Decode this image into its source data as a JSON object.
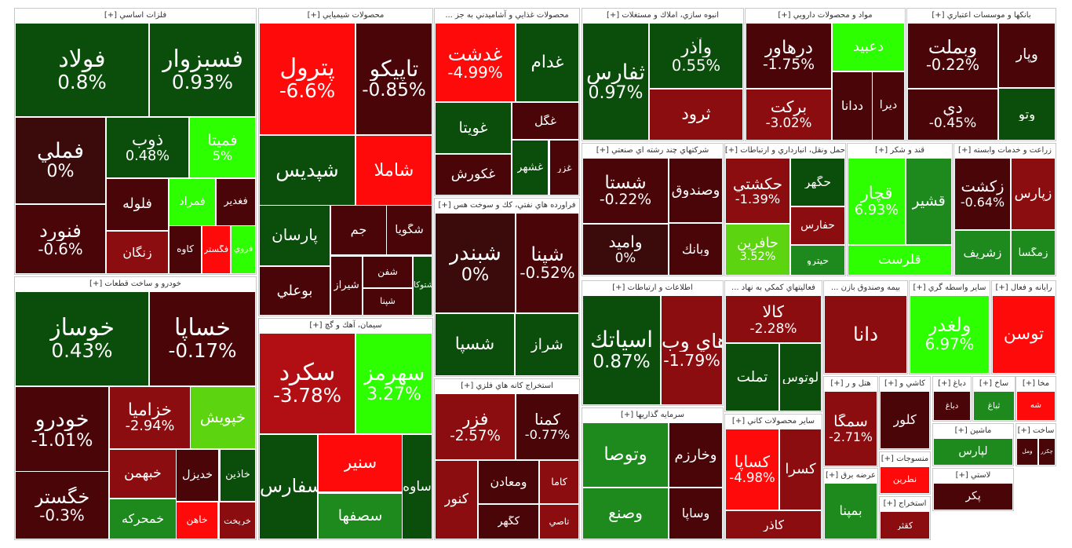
{
  "colors": {
    "dark_red": "#4a0508",
    "red": "#8c0d10",
    "bright_red": "#ff0a0a",
    "medium_red": "#b10f13",
    "neutral_dark": "#3b0a0a",
    "dark_green": "#0b4d0b",
    "green": "#1e8a1e",
    "bright_green": "#2eff00",
    "lime": "#5cd40f"
  },
  "chart_data": {
    "type": "heatmap",
    "sectors": [
      {
        "name": "فلزات اساسي [+]",
        "tiles": [
          {
            "symbol": "فولاد",
            "pct": "0.8%",
            "color": "#0b4d0b"
          },
          {
            "symbol": "فسبزوار",
            "pct": "0.93%",
            "color": "#0b4d0b"
          },
          {
            "symbol": "فملي",
            "pct": "0%",
            "color": "#3b0a0a"
          },
          {
            "symbol": "فنورد",
            "pct": "-0.6%",
            "color": "#4a0508"
          },
          {
            "symbol": "ذوب",
            "pct": "0.48%",
            "color": "#0b4d0b"
          },
          {
            "symbol": "فميتا",
            "pct": "5%",
            "color": "#2eff00"
          },
          {
            "symbol": "فلوله",
            "pct": "",
            "color": "#4a0508"
          },
          {
            "symbol": "زنگان",
            "pct": "",
            "color": "#8c0d10"
          },
          {
            "symbol": "فمراد",
            "pct": "",
            "color": "#2eff00"
          },
          {
            "symbol": "فغدير",
            "pct": "",
            "color": "#4a0508"
          },
          {
            "symbol": "كاوه",
            "pct": "",
            "color": "#4a0508"
          },
          {
            "symbol": "فگستر",
            "pct": "",
            "color": "#ff0a0a"
          },
          {
            "symbol": "فروي",
            "pct": "",
            "color": "#2eff00"
          }
        ]
      },
      {
        "name": "محصولات شيميايي [+]",
        "tiles": [
          {
            "symbol": "پترول",
            "pct": "-6.6%",
            "color": "#ff0a0a"
          },
          {
            "symbol": "تاپيكو",
            "pct": "-0.85%",
            "color": "#4a0508"
          },
          {
            "symbol": "شپديس",
            "pct": "",
            "color": "#0b4d0b"
          },
          {
            "symbol": "شاملا",
            "pct": "",
            "color": "#ff0a0a"
          },
          {
            "symbol": "پارسان",
            "pct": "",
            "color": "#0b4d0b"
          },
          {
            "symbol": "بوعلي",
            "pct": "",
            "color": "#4a0508"
          },
          {
            "symbol": "جم",
            "pct": "",
            "color": "#4a0508"
          },
          {
            "symbol": "شگويا",
            "pct": "",
            "color": "#4a0508"
          },
          {
            "symbol": "شيراز",
            "pct": "",
            "color": "#4a0508"
          },
          {
            "symbol": "شفن",
            "pct": "",
            "color": "#4a0508"
          },
          {
            "symbol": "شپنا",
            "pct": "",
            "color": "#4a0508"
          },
          {
            "symbol": "شتوكا",
            "pct": "",
            "color": "#0b4d0b"
          }
        ]
      },
      {
        "name": "محصولات غذايي و آشاميدني به جز ...",
        "tiles": [
          {
            "symbol": "غدشت",
            "pct": "-4.99%",
            "color": "#ff0a0a"
          },
          {
            "symbol": "غدام",
            "pct": "",
            "color": "#0b4d0b"
          },
          {
            "symbol": "غويتا",
            "pct": "",
            "color": "#0b4d0b"
          },
          {
            "symbol": "غكورش",
            "pct": "",
            "color": "#4a0508"
          },
          {
            "symbol": "غگل",
            "pct": "",
            "color": "#4a0508"
          },
          {
            "symbol": "غشهر",
            "pct": "",
            "color": "#0b4d0b"
          },
          {
            "symbol": "غزر",
            "pct": "",
            "color": "#4a0508"
          }
        ]
      },
      {
        "name": "انبوه سازي، املاك و مستغلات [+]",
        "tiles": [
          {
            "symbol": "ثفارس",
            "pct": "0.97%",
            "color": "#0b4d0b"
          },
          {
            "symbol": "وآذر",
            "pct": "0.55%",
            "color": "#0b4d0b"
          },
          {
            "symbol": "ثرود",
            "pct": "",
            "color": "#8c0d10"
          }
        ]
      },
      {
        "name": "مواد و محصولات دارويي [+]",
        "tiles": [
          {
            "symbol": "درهاور",
            "pct": "-1.75%",
            "color": "#4a0508"
          },
          {
            "symbol": "بركت",
            "pct": "-3.02%",
            "color": "#8c0d10"
          },
          {
            "symbol": "دعبيد",
            "pct": "",
            "color": "#2eff00"
          },
          {
            "symbol": "ددانا",
            "pct": "",
            "color": "#4a0508"
          },
          {
            "symbol": "ديرا",
            "pct": "",
            "color": "#4a0508"
          }
        ]
      },
      {
        "name": "بانكها و موسسات اعتباري [+]",
        "tiles": [
          {
            "symbol": "وبملت",
            "pct": "-0.22%",
            "color": "#4a0508"
          },
          {
            "symbol": "دي",
            "pct": "-0.45%",
            "color": "#4a0508"
          },
          {
            "symbol": "وپار",
            "pct": "",
            "color": "#4a0508"
          },
          {
            "symbol": "وتو",
            "pct": "",
            "color": "#0b4d0b"
          }
        ]
      },
      {
        "name": "خودرو و ساخت قطعات [+]",
        "tiles": [
          {
            "symbol": "خوساز",
            "pct": "0.43%",
            "color": "#0b4d0b"
          },
          {
            "symbol": "خساپا",
            "pct": "-0.17%",
            "color": "#4a0508"
          },
          {
            "symbol": "خودرو",
            "pct": "-1.01%",
            "color": "#4a0508"
          },
          {
            "symbol": "خگستر",
            "pct": "-0.3%",
            "color": "#4a0508"
          },
          {
            "symbol": "خزاميا",
            "pct": "-2.94%",
            "color": "#8c0d10"
          },
          {
            "symbol": "خپويش",
            "pct": "",
            "color": "#5cd40f"
          },
          {
            "symbol": "خبهمن",
            "pct": "",
            "color": "#8c0d10"
          },
          {
            "symbol": "خمحركه",
            "pct": "",
            "color": "#1e8a1e"
          },
          {
            "symbol": "خديزل",
            "pct": "",
            "color": "#4a0508"
          },
          {
            "symbol": "خاذين",
            "pct": "",
            "color": "#0b4d0b"
          },
          {
            "symbol": "خاهن",
            "pct": "",
            "color": "#ff0a0a"
          },
          {
            "symbol": "خريخت",
            "pct": "",
            "color": "#8c0d10"
          }
        ]
      },
      {
        "name": "سيمان، آهك و گچ [+]",
        "tiles": [
          {
            "symbol": "سكرد",
            "pct": "-3.78%",
            "color": "#b10f13"
          },
          {
            "symbol": "سهرمز",
            "pct": "3.27%",
            "color": "#2eff00"
          },
          {
            "symbol": "سفارس",
            "pct": "",
            "color": "#0b4d0b"
          },
          {
            "symbol": "سنير",
            "pct": "",
            "color": "#ff0a0a"
          },
          {
            "symbol": "سصفها",
            "pct": "",
            "color": "#1e8a1e"
          },
          {
            "symbol": "ساوه",
            "pct": "",
            "color": "#0b4d0b"
          }
        ]
      },
      {
        "name": "فراورده هاي نفتي، كك و سوخت هس [+]",
        "tiles": [
          {
            "symbol": "شبندر",
            "pct": "0%",
            "color": "#3b0a0a"
          },
          {
            "symbol": "شپنا",
            "pct": "-0.52%",
            "color": "#4a0508"
          },
          {
            "symbol": "شسپا",
            "pct": "",
            "color": "#0b4d0b"
          },
          {
            "symbol": "شراز",
            "pct": "",
            "color": "#0b4d0b"
          }
        ]
      },
      {
        "name": "شركتهاي چند رشته اي صنعتي [+]",
        "tiles": [
          {
            "symbol": "شستا",
            "pct": "-0.22%",
            "color": "#4a0508"
          },
          {
            "symbol": "وامید",
            "pct": "0%",
            "color": "#3b0a0a"
          },
          {
            "symbol": "وصندوق",
            "pct": "",
            "color": "#4a0508"
          },
          {
            "symbol": "وبانك",
            "pct": "",
            "color": "#4a0508"
          }
        ]
      },
      {
        "name": "حمل ونقل، انبارداري و ارتباطات [+]",
        "tiles": [
          {
            "symbol": "حكشتي",
            "pct": "-1.39%",
            "color": "#8c0d10"
          },
          {
            "symbol": "حافرين",
            "pct": "3.52%",
            "color": "#5cd40f"
          },
          {
            "symbol": "حگهر",
            "pct": "",
            "color": "#0b4d0b"
          },
          {
            "symbol": "حفارس",
            "pct": "",
            "color": "#8c0d10"
          },
          {
            "symbol": "حپترو",
            "pct": "",
            "color": "#1e8a1e"
          }
        ]
      },
      {
        "name": "قند و شكر [+]",
        "tiles": [
          {
            "symbol": "قچار",
            "pct": "6.93%",
            "color": "#2eff00"
          },
          {
            "symbol": "قشير",
            "pct": "",
            "color": "#1e8a1e"
          },
          {
            "symbol": "قلرست",
            "pct": "",
            "color": "#2eff00"
          }
        ]
      },
      {
        "name": "زراعت و خدمات وابسته [+]",
        "tiles": [
          {
            "symbol": "زكشت",
            "pct": "-0.64%",
            "color": "#4a0508"
          },
          {
            "symbol": "زپارس",
            "pct": "",
            "color": "#8c0d10"
          },
          {
            "symbol": "زشريف",
            "pct": "",
            "color": "#1e8a1e"
          },
          {
            "symbol": "زمگسا",
            "pct": "",
            "color": "#1e8a1e"
          }
        ]
      },
      {
        "name": "اطلاعات و ارتباطات [+]",
        "tiles": [
          {
            "symbol": "اسياتك",
            "pct": "0.87%",
            "color": "#0b4d0b"
          },
          {
            "symbol": "هاي وب",
            "pct": "-1.79%",
            "color": "#8c0d10"
          }
        ]
      },
      {
        "name": "فعاليتهاي كمكي به نهاد ...",
        "tiles": [
          {
            "symbol": "كالا",
            "pct": "-2.28%",
            "color": "#8c0d10"
          },
          {
            "symbol": "تملت",
            "pct": "",
            "color": "#0b4d0b"
          },
          {
            "symbol": "لوتوس",
            "pct": "",
            "color": "#0b4d0b"
          }
        ]
      },
      {
        "name": "سرمايه گذاريها [+]",
        "tiles": [
          {
            "symbol": "وتوصا",
            "pct": "",
            "color": "#1e8a1e"
          },
          {
            "symbol": "وصنع",
            "pct": "",
            "color": "#1e8a1e"
          },
          {
            "symbol": "وخارزم",
            "pct": "",
            "color": "#4a0508"
          },
          {
            "symbol": "وساپا",
            "pct": "",
            "color": "#4a0508"
          }
        ]
      },
      {
        "name": "ساير محصولات كاني [+]",
        "tiles": [
          {
            "symbol": "كساپا",
            "pct": "-4.98%",
            "color": "#ff0a0a"
          },
          {
            "symbol": "كسرا",
            "pct": "",
            "color": "#8c0d10"
          },
          {
            "symbol": "كاذر",
            "pct": "",
            "color": "#8c0d10"
          }
        ]
      },
      {
        "name": "بيمه وصندوق بازن ...",
        "tiles": [
          {
            "symbol": "دانا",
            "pct": "",
            "color": "#8c0d10"
          }
        ]
      },
      {
        "name": "ساير واسطه گري [+]",
        "tiles": [
          {
            "symbol": "ولغدر",
            "pct": "6.97%",
            "color": "#2eff00"
          }
        ]
      },
      {
        "name": "رايانه و فعال [+]",
        "tiles": [
          {
            "symbol": "توسن",
            "pct": "",
            "color": "#ff0a0a"
          }
        ]
      },
      {
        "name": "هتل و ر [+]",
        "tiles": [
          {
            "symbol": "سمگا",
            "pct": "-2.71%",
            "color": "#8c0d10"
          }
        ]
      },
      {
        "name": "ساخ [+]",
        "tiles": [
          {
            "symbol": "ثباغ",
            "pct": "",
            "color": "#1e8a1e"
          }
        ]
      },
      {
        "name": "ماشين [+]",
        "tiles": [
          {
            "symbol": "لپارس",
            "pct": "",
            "color": "#1e8a1e"
          }
        ]
      },
      {
        "name": "منسوجات [+]",
        "tiles": [
          {
            "symbol": "نطرين",
            "pct": "",
            "color": "#ff0a0a"
          }
        ]
      },
      {
        "name": "عرضه برق [+]",
        "tiles": [
          {
            "symbol": "بمپنا",
            "pct": "",
            "color": "#1e8a1e"
          }
        ]
      },
      {
        "name": "استخراج [+]",
        "tiles": [
          {
            "symbol": "كقثر",
            "pct": "",
            "color": "#8c0d10"
          }
        ]
      },
      {
        "name": "استخراج كانه هاي فلزي [+]",
        "tiles": [
          {
            "symbol": "فزر",
            "pct": "-2.57%",
            "color": "#8c0d10"
          },
          {
            "symbol": "كمنا",
            "pct": "-0.77%",
            "color": "#4a0508"
          },
          {
            "symbol": "كنور",
            "pct": "",
            "color": "#8c0d10"
          },
          {
            "symbol": "ومعادن",
            "pct": "",
            "color": "#4a0508"
          },
          {
            "symbol": "كگهر",
            "pct": "",
            "color": "#4a0508"
          },
          {
            "symbol": "كاما",
            "pct": "",
            "color": "#8c0d10"
          },
          {
            "symbol": "تاصي",
            "pct": "",
            "color": "#8c0d10"
          }
        ]
      },
      {
        "name": "ساخت [+]",
        "tiles": [
          {
            "symbol": "ومل",
            "pct": "",
            "color": "#4a0508"
          },
          {
            "symbol": "چكزر",
            "pct": "",
            "color": "#4a0508"
          }
        ]
      },
      {
        "name": "كاشي و [+]",
        "tiles": [
          {
            "symbol": "كلور",
            "pct": "",
            "color": "#4a0508"
          }
        ]
      },
      {
        "name": "مخا [+]",
        "tiles": [
          {
            "symbol": "شه",
            "pct": "",
            "color": "#ff0a0a"
          }
        ]
      },
      {
        "name": "لاستي [+]",
        "tiles": [
          {
            "symbol": "پكر",
            "pct": "",
            "color": "#4a0508"
          }
        ]
      },
      {
        "name": "دباغ [+]",
        "tiles": [
          {
            "symbol": "دباغ",
            "pct": "",
            "color": "#4a0508"
          }
        ]
      }
    ]
  }
}
